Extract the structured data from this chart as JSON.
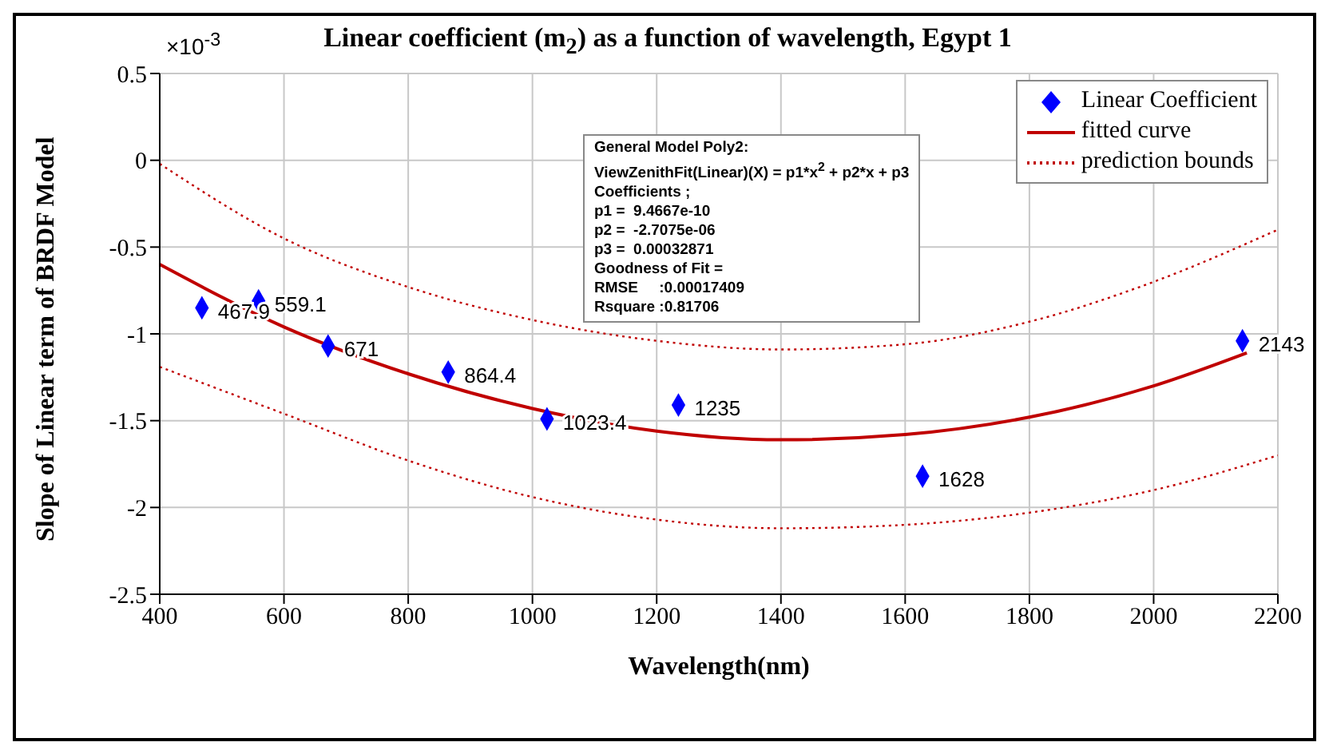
{
  "chart_data": {
    "type": "scatter",
    "title": "Linear coefficient (m$_{2}$) as a function of wavelength, Egypt 1",
    "xlabel": "Wavelength(nm)",
    "ylabel": "Slope of Linear term of BRDF Model",
    "annotations": [
      "×10$^{-3}$",
      "General Model Poly2:",
      "ViewZenithFit(Linear)(X) = p1*x$^{2}$ + p2*x + p3",
      "Coefficients ;",
      "p1 =  9.4667e-10",
      "p2 =  -2.7075e-06",
      "p3 =  0.00032871",
      "Goodness of Fit =",
      "RMSE     :0.00017409",
      "Rsquare :0.81706",
      {
        "text": "467.9",
        "x": 467.9,
        "y": -0.85
      },
      {
        "text": "559.1",
        "x": 559.1,
        "y": -0.81
      },
      {
        "text": "671",
        "x": 671,
        "y": -1.07
      },
      {
        "text": "864.4",
        "x": 864.4,
        "y": -1.22
      },
      {
        "text": "1023.4",
        "x": 1023.4,
        "y": -1.49
      },
      {
        "text": "1235",
        "x": 1235,
        "y": -1.41
      },
      {
        "text": "1628",
        "x": 1628,
        "y": -1.82
      },
      {
        "text": "2143",
        "x": 2143,
        "y": -1.04
      }
    ],
    "xlim": [
      400,
      2200
    ],
    "xticks": [
      400,
      600,
      800,
      1000,
      1200,
      1400,
      1600,
      1800,
      2000,
      2200
    ],
    "ylim": [
      -2.5,
      0.5
    ],
    "yticks": [
      -2.5,
      -2,
      -1.5,
      -1,
      -0.5,
      0,
      0.5
    ],
    "grid": true,
    "legend": "top right",
    "series": [
      {
        "name": "Linear Coefficient",
        "marker": "diamond",
        "color": "#0000ff",
        "x": [
          467.9,
          559.1,
          671,
          864.4,
          1023.4,
          1235,
          1628,
          2143
        ],
        "values": [
          -0.85,
          -0.81,
          -1.07,
          -1.22,
          -1.49,
          -1.41,
          -1.82,
          -1.04
        ]
      },
      {
        "name": "fitted curve",
        "type": "line",
        "line_style": "solid",
        "color": "#c00000",
        "x": [
          400,
          600,
          800,
          1000,
          1200,
          1400,
          1600,
          1800,
          2000,
          2150
        ],
        "values": [
          -0.6,
          -0.96,
          -1.23,
          -1.43,
          -1.56,
          -1.61,
          -1.58,
          -1.48,
          -1.3,
          -1.11
        ]
      },
      {
        "name": "prediction bounds",
        "type": "line",
        "line_style": "dotted",
        "color": "#c00000",
        "x": [
          400,
          600,
          800,
          1000,
          1200,
          1400,
          1600,
          1800,
          2000,
          2200
        ],
        "values": [
          -0.02,
          -0.45,
          -0.73,
          -0.92,
          -1.04,
          -1.09,
          -1.06,
          -0.93,
          -0.7,
          -0.4
        ]
      },
      {
        "type": "line",
        "line_style": "dotted",
        "color": "#c00000",
        "x": [
          400,
          600,
          800,
          1000,
          1200,
          1400,
          1600,
          1800,
          2000,
          2200
        ],
        "values": [
          -1.19,
          -1.46,
          -1.73,
          -1.94,
          -2.07,
          -2.12,
          -2.1,
          -2.03,
          -1.9,
          -1.7
        ]
      }
    ]
  }
}
